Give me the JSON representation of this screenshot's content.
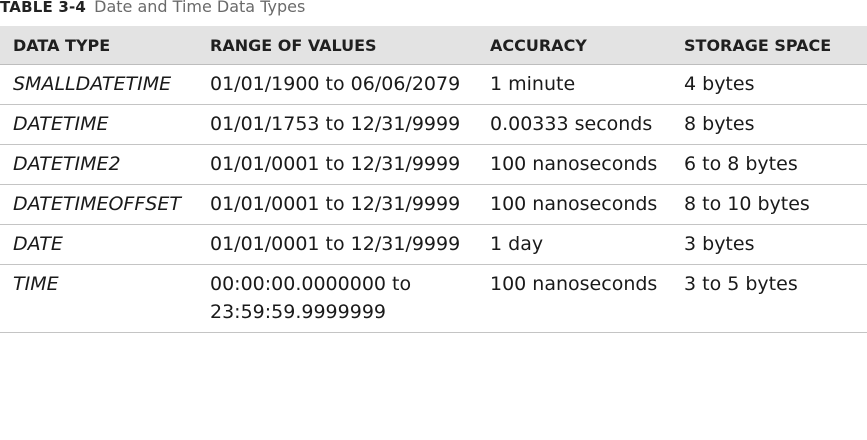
{
  "caption": {
    "number": "TABLE 3-4",
    "title": "Date and Time Data Types"
  },
  "table": {
    "headers": [
      "DATA TYPE",
      "RANGE OF VALUES",
      "ACCURACY",
      "STORAGE SPACE"
    ],
    "rows": [
      {
        "type": "SMALLDATETIME",
        "range": "01/01/1900 to 06/06/2079",
        "accuracy": "1 minute",
        "storage": "4 bytes"
      },
      {
        "type": "DATETIME",
        "range": "01/01/1753 to 12/31/9999",
        "accuracy": "0.00333 seconds",
        "storage": "8 bytes"
      },
      {
        "type": "DATETIME2",
        "range": "01/01/0001 to 12/31/9999",
        "accuracy": "100 nanoseconds",
        "storage": "6 to 8 bytes"
      },
      {
        "type": "DATETIMEOFFSET",
        "range": "01/01/0001 to 12/31/9999",
        "accuracy": "100 nanoseconds",
        "storage": "8 to 10 bytes"
      },
      {
        "type": "DATE",
        "range": "01/01/0001 to 12/31/9999",
        "accuracy": "1 day",
        "storage": "3 bytes"
      },
      {
        "type": "TIME",
        "range": "00:00:00.0000000 to 23:59:59.9999999",
        "accuracy": "100 nanoseconds",
        "storage": "3 to 5 bytes"
      }
    ]
  }
}
